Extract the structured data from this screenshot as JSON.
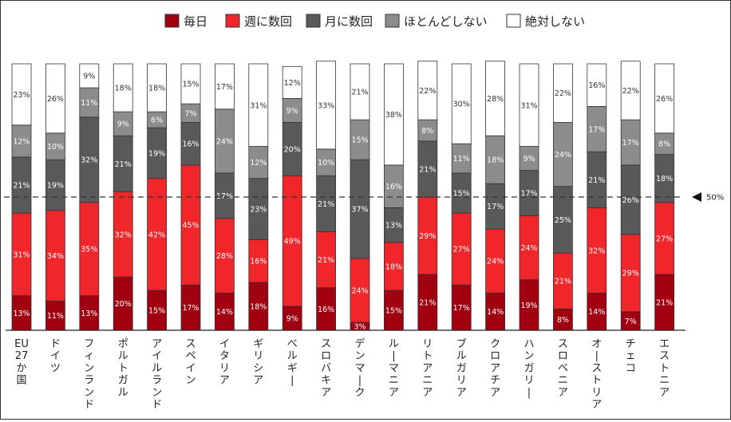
{
  "chart_data": {
    "type": "bar",
    "stacked": true,
    "orientation": "vertical",
    "title": "",
    "xlabel": "",
    "ylabel": "",
    "ylim": [
      0,
      100
    ],
    "value_suffix": "%",
    "legend_position": "top",
    "categories": [
      "EU27か国",
      "ドイツ",
      "フィンランド",
      "ポルトガル",
      "アイルランド",
      "スペイン",
      "イタリア",
      "ギリシア",
      "ベルギー",
      "スロバキア",
      "デンマーク",
      "ルーマニア",
      "リトアニア",
      "ブルガリア",
      "クロアチア",
      "ハンガリー",
      "スロベニア",
      "オーストリア",
      "チェコ",
      "エストニア"
    ],
    "series": [
      {
        "name": "毎日",
        "color": "#a0000f",
        "label_color": "#ffffff",
        "values": [
          13,
          11,
          13,
          20,
          15,
          17,
          14,
          18,
          9,
          16,
          3,
          15,
          21,
          17,
          14,
          19,
          8,
          14,
          7,
          21
        ]
      },
      {
        "name": "週に数回",
        "color": "#f0262b",
        "label_color": "#ffffff",
        "values": [
          31,
          34,
          35,
          32,
          42,
          45,
          28,
          16,
          49,
          21,
          24,
          18,
          29,
          27,
          24,
          24,
          21,
          32,
          29,
          27
        ]
      },
      {
        "name": "月に数回",
        "color": "#595959",
        "label_color": "#ffffff",
        "values": [
          21,
          19,
          32,
          21,
          19,
          16,
          17,
          23,
          20,
          21,
          37,
          13,
          21,
          15,
          17,
          17,
          25,
          21,
          26,
          18
        ]
      },
      {
        "name": "ほとんどしない",
        "color": "#8c8c8c",
        "label_color": "#ffffff",
        "values": [
          12,
          10,
          11,
          9,
          6,
          7,
          24,
          12,
          9,
          10,
          15,
          16,
          8,
          11,
          18,
          9,
          24,
          17,
          17,
          8
        ]
      },
      {
        "name": "絶対しない",
        "color": "#ffffff",
        "label_color": "#333333",
        "values": [
          23,
          26,
          9,
          18,
          18,
          15,
          17,
          31,
          12,
          33,
          21,
          38,
          22,
          30,
          28,
          31,
          22,
          16,
          22,
          26
        ]
      }
    ],
    "reference_line": {
      "value": 50,
      "label": "50%",
      "style": "dashed"
    },
    "grid": false
  }
}
